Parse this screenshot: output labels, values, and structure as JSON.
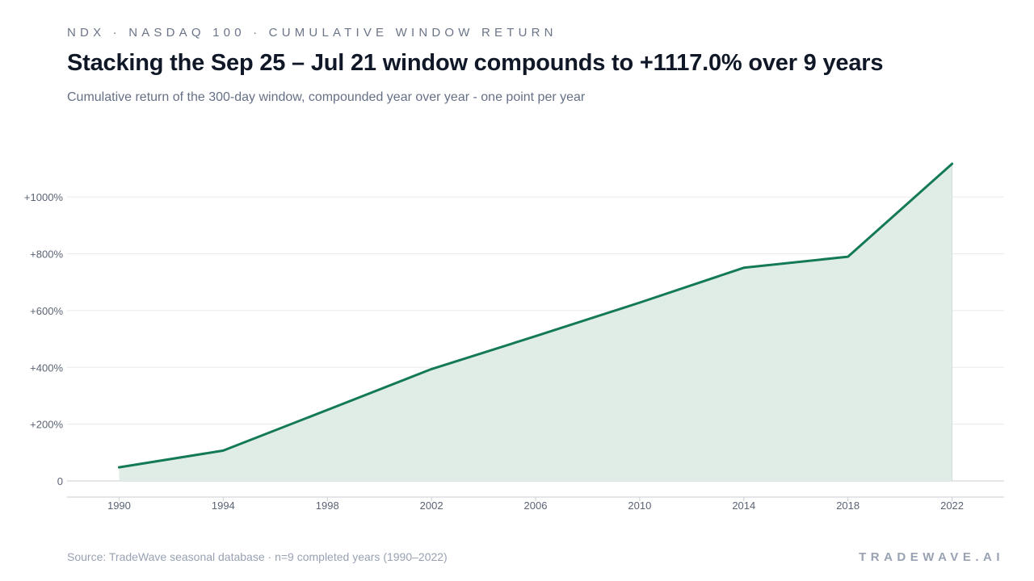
{
  "header": {
    "kicker": "NDX · NASDAQ 100 · CUMULATIVE WINDOW RETURN",
    "title": "Stacking the Sep 25 – Jul 21 window compounds to +1117.0% over 9 years",
    "subtitle": "Cumulative return of the 300-day window, compounded year over year - one point per year"
  },
  "footer": {
    "source": "Source: TradeWave seasonal database · n=9 completed years (1990–2022)",
    "brand": "TRADEWAVE.AI"
  },
  "colors": {
    "line": "#147a55",
    "fill": "#dfede6",
    "grid": "#e8eaee",
    "axis": "#c9ced6",
    "tick_text": "#5b6475"
  },
  "chart_data": {
    "type": "area",
    "x": [
      1990,
      1994,
      1998,
      2002,
      2006,
      2010,
      2014,
      2018,
      2022
    ],
    "series": [
      {
        "values": [
          48,
          107,
          250,
          394,
          510,
          628,
          751,
          790,
          1117
        ]
      }
    ],
    "xticks": [
      1990,
      1994,
      1998,
      2002,
      2006,
      2010,
      2014,
      2018,
      2022
    ],
    "xtick_labels": [
      "1990",
      "1994",
      "1998",
      "2002",
      "2006",
      "2010",
      "2014",
      "2018",
      "2022"
    ],
    "yticks": [
      0,
      200,
      400,
      600,
      800,
      1000
    ],
    "ytick_labels": [
      "0",
      "+200%",
      "+400%",
      "+600%",
      "+800%",
      "+1000%"
    ],
    "xlim": [
      1988,
      2024
    ],
    "ylim": [
      0,
      1117
    ],
    "grid": true
  }
}
